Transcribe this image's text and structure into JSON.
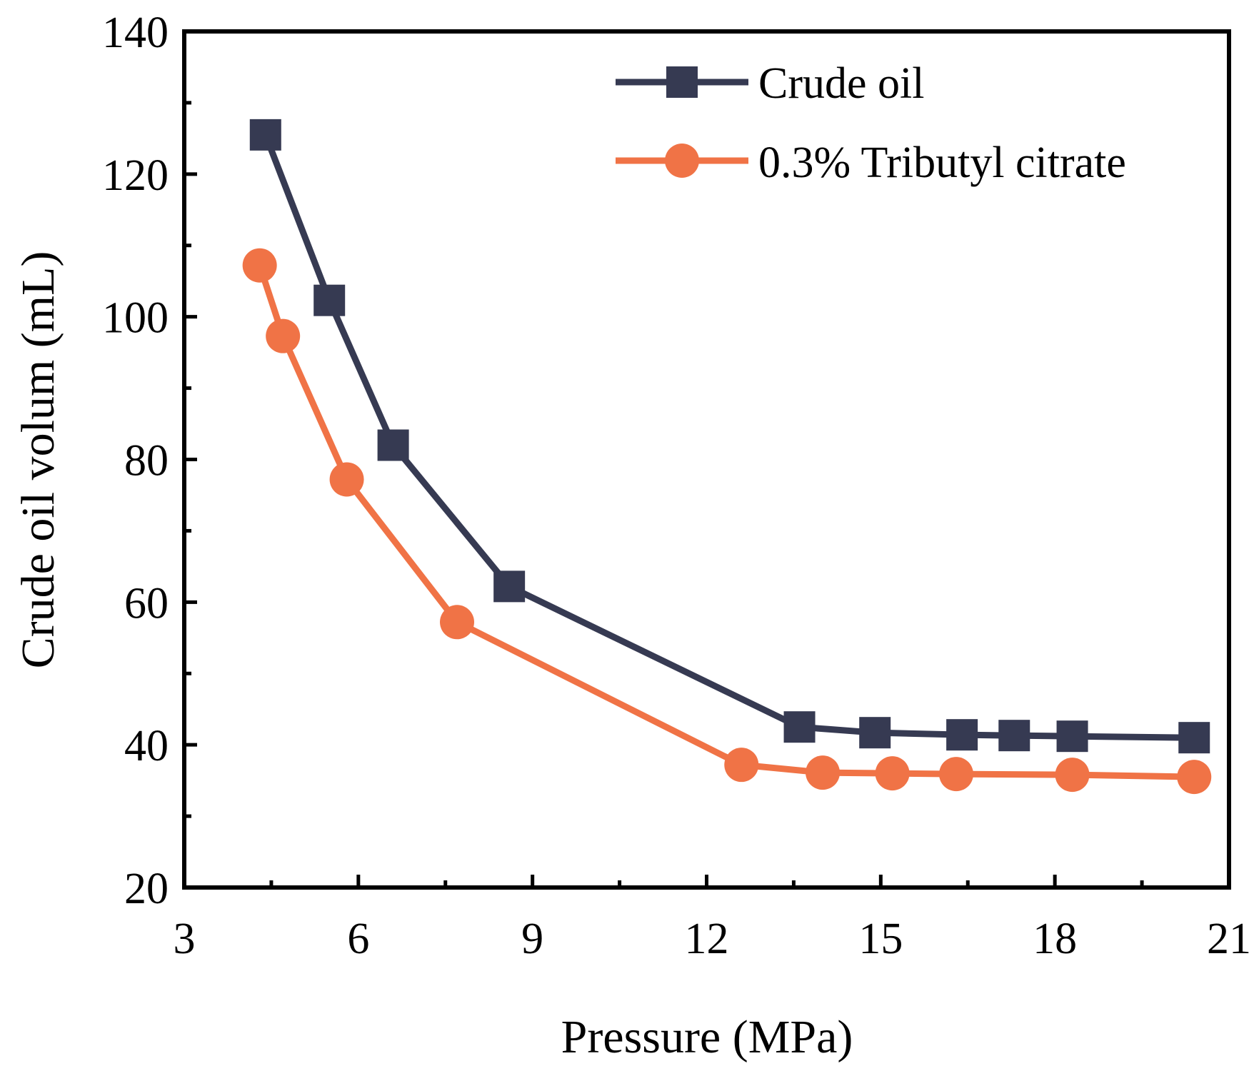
{
  "chart_data": {
    "type": "line",
    "title": "",
    "xlabel": "Pressure (MPa)",
    "ylabel": "Crude oil volum (mL)",
    "xlim": [
      3,
      21
    ],
    "ylim": [
      20,
      140
    ],
    "xticks": [
      3,
      6,
      9,
      12,
      15,
      18,
      21
    ],
    "yticks": [
      20,
      40,
      60,
      80,
      100,
      120,
      140
    ],
    "xticks_minor": [
      4.5,
      7.5,
      10.5,
      13.5,
      16.5,
      19.5
    ],
    "yticks_minor": [
      30,
      50,
      70,
      90,
      110,
      130
    ],
    "grid": false,
    "legend_position": "top-right",
    "series": [
      {
        "name": "Crude oil",
        "color": "#363a52",
        "marker": "square",
        "x": [
          4.4,
          5.5,
          6.6,
          8.6,
          13.6,
          14.9,
          16.4,
          17.3,
          18.3,
          20.4
        ],
        "y": [
          125.5,
          102.3,
          82.0,
          62.2,
          42.5,
          41.7,
          41.4,
          41.3,
          41.2,
          41.0
        ]
      },
      {
        "name": "0.3% Tributyl citrate",
        "color": "#f07346",
        "marker": "circle",
        "x": [
          4.3,
          4.7,
          5.8,
          7.7,
          12.6,
          14.0,
          15.2,
          16.3,
          18.3,
          20.4
        ],
        "y": [
          107.2,
          97.3,
          77.2,
          57.2,
          37.2,
          36.1,
          36.0,
          35.9,
          35.8,
          35.5
        ]
      }
    ]
  }
}
